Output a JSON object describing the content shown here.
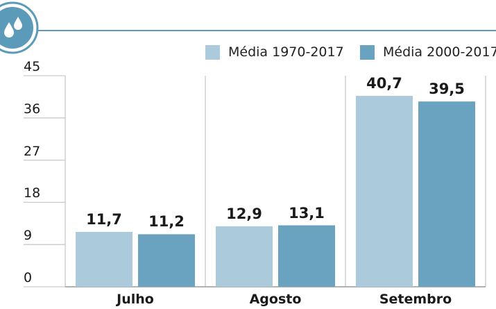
{
  "colors": {
    "accent": "#5b9ab8",
    "series_light": "#abcbdc",
    "series_dark": "#6aa3bf",
    "grid": "#c9c9c9",
    "baseline": "#9a9a9a"
  },
  "header": {
    "icon": "water-drop-icon"
  },
  "chart_data": {
    "type": "bar",
    "categories": [
      "Julho",
      "Agosto",
      "Setembro"
    ],
    "series": [
      {
        "name": "Média 1970-2017",
        "values": [
          11.7,
          12.9,
          40.7
        ],
        "labels": [
          "11,7",
          "12,9",
          "40,7"
        ],
        "color": "#abcbdc"
      },
      {
        "name": "Média 2000-2017",
        "values": [
          11.2,
          13.1,
          39.5
        ],
        "labels": [
          "11,2",
          "13,1",
          "39,5"
        ],
        "color": "#6aa3bf"
      }
    ],
    "yticks": [
      0,
      9,
      18,
      27,
      36,
      45
    ],
    "ylim": [
      0,
      45
    ],
    "grid": "vertical-separators",
    "legend_position": "top-right"
  }
}
